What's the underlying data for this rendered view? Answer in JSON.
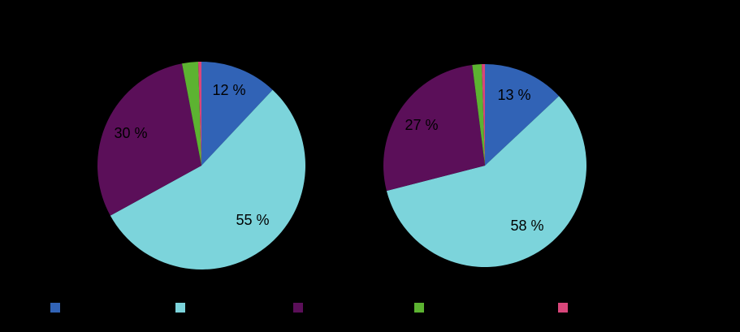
{
  "chart_data": [
    {
      "type": "pie",
      "categories": [
        "",
        "",
        "",
        "",
        ""
      ],
      "values": [
        12,
        55,
        30,
        2.5,
        0.5
      ],
      "colors": [
        "#3163B6",
        "#7CD4DB",
        "#5B0F59",
        "#5CB331",
        "#D8467A"
      ],
      "labels": [
        "12 %",
        "55 %",
        "30 %",
        "",
        ""
      ]
    },
    {
      "type": "pie",
      "categories": [
        "",
        "",
        "",
        "",
        ""
      ],
      "values": [
        13,
        58,
        27,
        1.5,
        0.5
      ],
      "colors": [
        "#3163B6",
        "#7CD4DB",
        "#5B0F59",
        "#5CB331",
        "#D8467A"
      ],
      "labels": [
        "13 %",
        "58 %",
        "27 %",
        "",
        ""
      ]
    }
  ],
  "legend": {
    "placement": "bottom",
    "colors": [
      "#3163B6",
      "#7CD4DB",
      "#5B0F59",
      "#5CB331",
      "#D8467A"
    ]
  },
  "background": "#000000"
}
